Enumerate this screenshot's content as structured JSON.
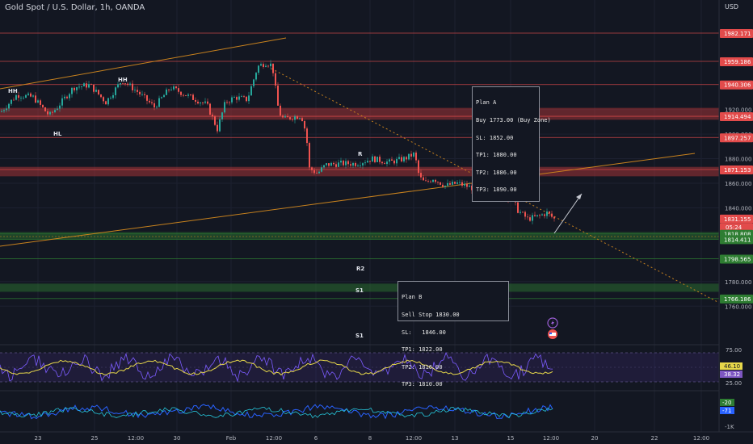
{
  "header": {
    "symbol": "Gold Spot / U.S. Dollar, 1h, OANDA",
    "currency": "USD"
  },
  "colors": {
    "background": "#131722",
    "up": "#26a69a",
    "down": "#ef5350",
    "level_line": "#e24b4b",
    "zone_red": "#c0393b",
    "zone_green": "#2e7d32",
    "trendline": "#c8821e",
    "rsi": "#e6d74a",
    "rsi_band": "#5b3aa6",
    "osc1": "#2962ff",
    "osc2": "#26c6da"
  },
  "chart_data": {
    "type": "candlestick",
    "title": "Gold Spot / U.S. Dollar, 1h, OANDA",
    "xlabel": "",
    "ylabel": "",
    "ylim": [
      1755,
      1998
    ],
    "y_ticks": [
      "1920.000",
      "1900.000",
      "1880.000",
      "1860.000",
      "1840.000",
      "1780.000",
      "1760.000"
    ],
    "x_ticks": [
      "23",
      "25",
      "12:00",
      "30",
      "Feb",
      "12:00",
      "6",
      "8",
      "12:00",
      "13",
      "15",
      "12:00",
      "20",
      "22",
      "12:00"
    ],
    "price_path": [
      [
        0,
        1918
      ],
      [
        20,
        1932
      ],
      [
        40,
        1930
      ],
      [
        60,
        1915
      ],
      [
        70,
        1922
      ],
      [
        90,
        1938
      ],
      [
        110,
        1940
      ],
      [
        130,
        1926
      ],
      [
        150,
        1944
      ],
      [
        170,
        1934
      ],
      [
        190,
        1922
      ],
      [
        210,
        1938
      ],
      [
        235,
        1930
      ],
      [
        255,
        1924
      ],
      [
        268,
        1904
      ],
      [
        278,
        1926
      ],
      [
        290,
        1930
      ],
      [
        305,
        1928
      ],
      [
        318,
        1955
      ],
      [
        328,
        1958
      ],
      [
        336,
        1956
      ],
      [
        344,
        1918
      ],
      [
        350,
        1912
      ],
      [
        362,
        1914
      ],
      [
        372,
        1915
      ],
      [
        378,
        1900
      ],
      [
        382,
        1872
      ],
      [
        392,
        1868
      ],
      [
        402,
        1875
      ],
      [
        420,
        1876
      ],
      [
        440,
        1876
      ],
      [
        460,
        1880
      ],
      [
        480,
        1877
      ],
      [
        500,
        1880
      ],
      [
        512,
        1884
      ],
      [
        518,
        1865
      ],
      [
        525,
        1860
      ],
      [
        535,
        1864
      ],
      [
        550,
        1858
      ],
      [
        565,
        1860
      ],
      [
        585,
        1856
      ],
      [
        605,
        1858
      ],
      [
        615,
        1865
      ],
      [
        622,
        1850
      ],
      [
        632,
        1849
      ],
      [
        640,
        1838
      ],
      [
        652,
        1831
      ],
      [
        665,
        1833
      ],
      [
        676,
        1836
      ],
      [
        685,
        1831
      ]
    ],
    "levels": [
      {
        "label": "1982.171",
        "value": 1982.171,
        "color": "#e24b4b"
      },
      {
        "label": "1959.186",
        "value": 1959.186,
        "color": "#e24b4b"
      },
      {
        "label": "1940.306",
        "value": 1940.306,
        "color": "#e24b4b"
      },
      {
        "label": "1914.494",
        "value": 1914.494,
        "color": "#e24b4b"
      },
      {
        "label": "1897.257",
        "value": 1897.257,
        "color": "#e24b4b"
      },
      {
        "label": "1871.153",
        "value": 1871.153,
        "color": "#e24b4b"
      },
      {
        "label": "1831.155",
        "value": 1831.155,
        "color": "#e24b4b"
      },
      {
        "label": "1818.808",
        "value": 1818.808,
        "color": "#2e7d32"
      },
      {
        "label": "1814.411",
        "value": 1814.411,
        "color": "#2e7d32"
      },
      {
        "label": "1798.565",
        "value": 1798.565,
        "color": "#2e7d32"
      },
      {
        "label": "1766.186",
        "value": 1766.186,
        "color": "#2e7d32"
      }
    ],
    "countdown": "05:24",
    "zones": [
      {
        "from": 1912,
        "to": 1921,
        "color": "#c0393b"
      },
      {
        "from": 1866,
        "to": 1873,
        "color": "#c0393b"
      },
      {
        "from": 1815,
        "to": 1820,
        "color": "#2e7d32"
      },
      {
        "from": 1772,
        "to": 1778,
        "color": "#2e7d32"
      }
    ],
    "swing_labels": [
      "HH",
      "HH",
      "HL",
      "R",
      "R2",
      "S1",
      "S1"
    ],
    "plan_a": [
      "Plan A",
      "Buy 1773.00 (Buy Zone)",
      "SL: 1852.00",
      "TP1: 1880.00",
      "TP2: 1886.00",
      "TP3: 1890.00"
    ],
    "plan_b": [
      "Plan B",
      "Sell Stop 1830.00",
      "SL:   1846.00",
      "TP1: 1822.00",
      "TP2: 1816.00",
      "TP3: 1810.00"
    ],
    "rsi": {
      "ticks": [
        "75.00",
        "25.00"
      ],
      "value_yellow": "46.10",
      "value_purple": "38.32"
    },
    "osc": {
      "ticks": [
        "-1K"
      ],
      "value_a": "-20",
      "value_b": "-71"
    }
  }
}
